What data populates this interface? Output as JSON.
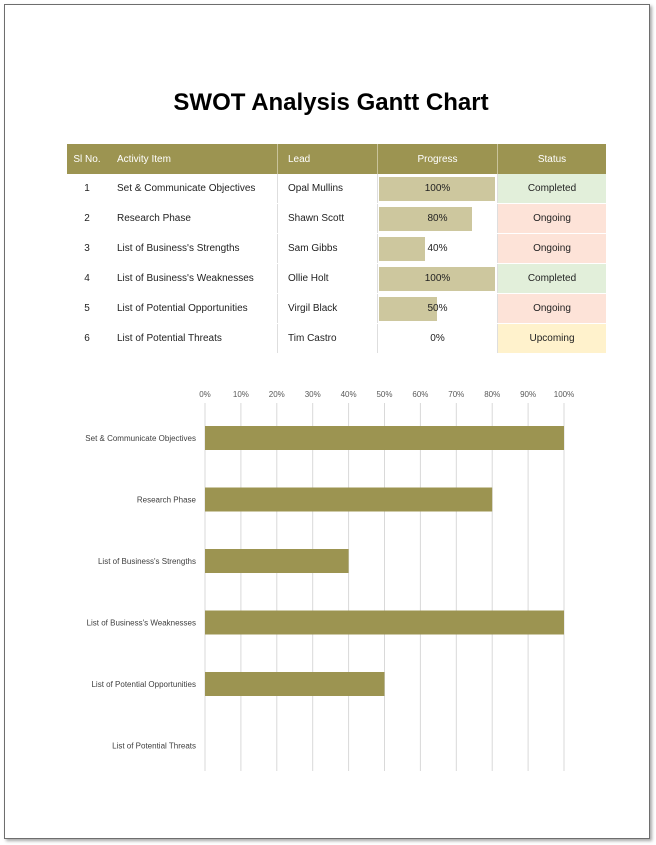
{
  "title": "SWOT Analysis Gantt Chart",
  "table": {
    "headers": {
      "no": "Sl No.",
      "activity": "Activity Item",
      "lead": "Lead",
      "progress": "Progress",
      "status": "Status"
    },
    "rows": [
      {
        "no": "1",
        "activity": "Set & Communicate Objectives",
        "lead": "Opal Mullins",
        "progress": 100,
        "progress_label": "100%",
        "status": "Completed",
        "status_kind": "completed"
      },
      {
        "no": "2",
        "activity": "Research Phase",
        "lead": "Shawn Scott",
        "progress": 80,
        "progress_label": "80%",
        "status": "Ongoing",
        "status_kind": "ongoing"
      },
      {
        "no": "3",
        "activity": "List of Business's Strengths",
        "lead": "Sam Gibbs",
        "progress": 40,
        "progress_label": "40%",
        "status": "Ongoing",
        "status_kind": "ongoing"
      },
      {
        "no": "4",
        "activity": "List of Business's Weaknesses",
        "lead": "Ollie Holt",
        "progress": 100,
        "progress_label": "100%",
        "status": "Completed",
        "status_kind": "completed"
      },
      {
        "no": "5",
        "activity": "List of Potential Opportunities",
        "lead": "Virgil Black",
        "progress": 50,
        "progress_label": "50%",
        "status": "Ongoing",
        "status_kind": "ongoing"
      },
      {
        "no": "6",
        "activity": "List of Potential Threats",
        "lead": "Tim Castro",
        "progress": 0,
        "progress_label": "0%",
        "status": "Upcoming",
        "status_kind": "upcoming"
      }
    ]
  },
  "chart_data": {
    "type": "bar",
    "orientation": "horizontal",
    "categories": [
      "Set & Communicate Objectives",
      "Research Phase",
      "List of Business's Strengths",
      "List of Business's Weaknesses",
      "List of Potential Opportunities",
      "List of Potential Threats"
    ],
    "values": [
      100,
      80,
      40,
      100,
      50,
      0
    ],
    "xlim": [
      0,
      100
    ],
    "xticks": [
      0,
      10,
      20,
      30,
      40,
      50,
      60,
      70,
      80,
      90,
      100
    ],
    "xtick_labels": [
      "0%",
      "10%",
      "20%",
      "30%",
      "40%",
      "50%",
      "60%",
      "70%",
      "80%",
      "90%",
      "100%"
    ],
    "grid": true,
    "axis_position": "top",
    "title": "",
    "xlabel": "",
    "ylabel": ""
  },
  "colors": {
    "accent": "#9c9451",
    "progress_fill": "#cdc79e",
    "completed_bg": "#e2efda",
    "ongoing_bg": "#fde3d8",
    "upcoming_bg": "#fff2cc"
  }
}
